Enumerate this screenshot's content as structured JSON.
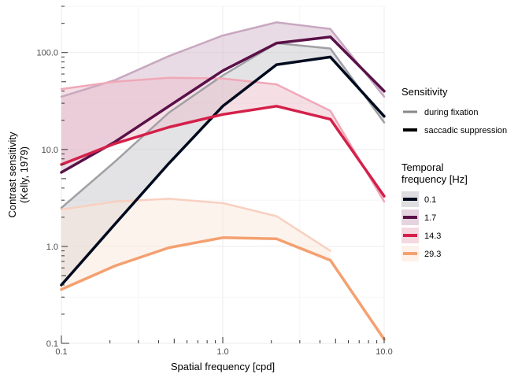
{
  "chart_data": {
    "type": "line",
    "xlabel": "Spatial frequency [cpd]",
    "ylabel": [
      "Contrast sensitivity",
      "(Kelly, 1979)"
    ],
    "x_scale": "log",
    "y_scale": "log",
    "xlim": [
      0.1,
      10.0
    ],
    "ylim": [
      0.1,
      300
    ],
    "x_ticks": [
      0.1,
      1.0,
      10.0
    ],
    "x_tick_labels": [
      "0.1",
      "1.0",
      "10.0"
    ],
    "y_ticks": [
      0.1,
      1.0,
      10.0,
      100.0
    ],
    "y_tick_labels": [
      "0.1",
      "1.0",
      "10.0",
      "100.0"
    ],
    "grid": true,
    "legend": {
      "placement": "right",
      "sensitivity_title": "Sensitivity",
      "sensitivity_items": [
        {
          "label": "during fixation",
          "color": "#888888"
        },
        {
          "label": "saccadic suppression",
          "color": "#000000"
        }
      ],
      "temporal_title": [
        "Temporal",
        "frequency [Hz]"
      ],
      "temporal_items": [
        "0.1",
        "1.7",
        "14.3",
        "29.3"
      ]
    },
    "series": [
      {
        "name": "0.1",
        "color": "#000a1e",
        "fill": "#c8c8cc",
        "fixation_color": "#a0a0a4",
        "x": [
          0.1,
          0.215,
          0.464,
          1.0,
          2.154,
          4.642,
          10.0
        ],
        "fixation": [
          2.5,
          7.5,
          24,
          58,
          125,
          110,
          19
        ],
        "suppression": [
          0.4,
          1.7,
          7.2,
          28,
          75,
          90,
          22
        ]
      },
      {
        "name": "1.7",
        "color": "#5a1048",
        "fill": "#d4b8cc",
        "fixation_color": "#c8a8c0",
        "x": [
          0.1,
          0.215,
          0.464,
          1.0,
          2.154,
          4.642,
          10.0
        ],
        "fixation": [
          35,
          52,
          92,
          150,
          205,
          175,
          35
        ],
        "suppression": [
          5.8,
          12,
          28,
          65,
          125,
          145,
          40
        ]
      },
      {
        "name": "14.3",
        "color": "#d4204a",
        "fill": "#ecc0cc",
        "fixation_color": "#f0a8b8",
        "x": [
          0.1,
          0.215,
          0.464,
          1.0,
          2.154,
          4.642,
          10.0
        ],
        "fixation": [
          42,
          50,
          55,
          54,
          47,
          25,
          2.9
        ],
        "suppression": [
          7,
          11.5,
          17,
          23,
          28,
          20.5,
          3.3
        ]
      },
      {
        "name": "29.3",
        "color": "#f4a070",
        "fill": "#fce8dc",
        "fixation_color": "#f8d0c0",
        "x": [
          0.1,
          0.215,
          0.464,
          1.0,
          2.154,
          4.642,
          10.0
        ],
        "fixation": [
          2.4,
          2.9,
          3.1,
          2.8,
          2.05,
          0.9
        ],
        "fixation_x": [
          0.1,
          0.215,
          0.464,
          1.0,
          2.154,
          4.642
        ],
        "suppression": [
          0.36,
          0.63,
          0.97,
          1.23,
          1.2,
          0.72,
          0.11
        ]
      }
    ]
  }
}
